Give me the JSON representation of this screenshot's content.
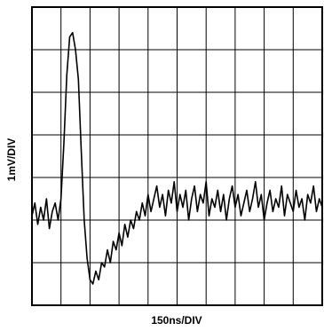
{
  "chart_data": {
    "type": "line",
    "xlabel": "150ns/DIV",
    "ylabel": "1mV/DIV",
    "x": [
      0,
      15,
      30,
      45,
      60,
      75,
      90,
      105,
      120,
      135,
      150,
      165,
      180,
      195,
      210,
      225,
      240,
      255,
      270,
      285,
      300,
      315,
      330,
      345,
      360,
      375,
      390,
      405,
      420,
      435,
      450,
      465,
      480,
      495,
      510,
      525,
      540,
      555,
      570,
      585,
      600,
      615,
      630,
      645,
      660,
      675,
      690,
      705,
      720,
      735,
      750,
      765,
      780,
      795,
      810,
      825,
      840,
      855,
      870,
      885,
      900,
      915,
      930,
      945,
      960,
      975,
      990,
      1005,
      1020,
      1035,
      1050,
      1065,
      1080,
      1095,
      1110,
      1125,
      1140,
      1155,
      1170,
      1185,
      1200,
      1215,
      1230,
      1245,
      1260,
      1275,
      1290,
      1305,
      1320,
      1335,
      1350,
      1365,
      1380,
      1395,
      1410,
      1425,
      1440,
      1455,
      1470,
      1485,
      1500
    ],
    "series": [
      {
        "color": "#000000",
        "values": [
          2.1,
          2.4,
          1.9,
          2.3,
          2.0,
          2.5,
          1.8,
          2.2,
          2.4,
          2.0,
          2.5,
          3.8,
          5.4,
          6.3,
          6.4,
          6.0,
          5.3,
          3.6,
          2.0,
          1.1,
          0.6,
          0.5,
          0.8,
          0.6,
          1.0,
          0.9,
          1.3,
          1.0,
          1.5,
          1.3,
          1.7,
          1.4,
          1.9,
          1.6,
          2.0,
          1.8,
          2.2,
          2.0,
          2.4,
          2.1,
          2.6,
          2.2,
          2.5,
          2.8,
          2.3,
          2.6,
          2.1,
          2.7,
          2.4,
          2.9,
          2.2,
          2.6,
          2.3,
          2.7,
          2.0,
          2.5,
          2.8,
          2.2,
          2.6,
          2.4,
          2.9,
          2.1,
          2.5,
          2.3,
          2.7,
          2.2,
          2.6,
          2.0,
          2.5,
          2.8,
          2.3,
          2.6,
          2.1,
          2.4,
          2.7,
          2.2,
          2.5,
          2.9,
          2.3,
          2.6,
          2.0,
          2.4,
          2.7,
          2.2,
          2.5,
          2.3,
          2.8,
          2.1,
          2.6,
          2.4,
          2.2,
          2.7,
          2.3,
          2.5,
          2.0,
          2.6,
          2.4,
          2.8,
          2.2,
          2.5,
          2.3
        ]
      }
    ],
    "xlim": [
      0,
      1500
    ],
    "ylim": [
      0,
      7
    ],
    "xticks": [
      0,
      150,
      300,
      450,
      600,
      750,
      900,
      1050,
      1200,
      1350,
      1500
    ],
    "yticks": [
      0,
      1,
      2,
      3,
      4,
      5,
      6,
      7
    ],
    "grid": true
  }
}
